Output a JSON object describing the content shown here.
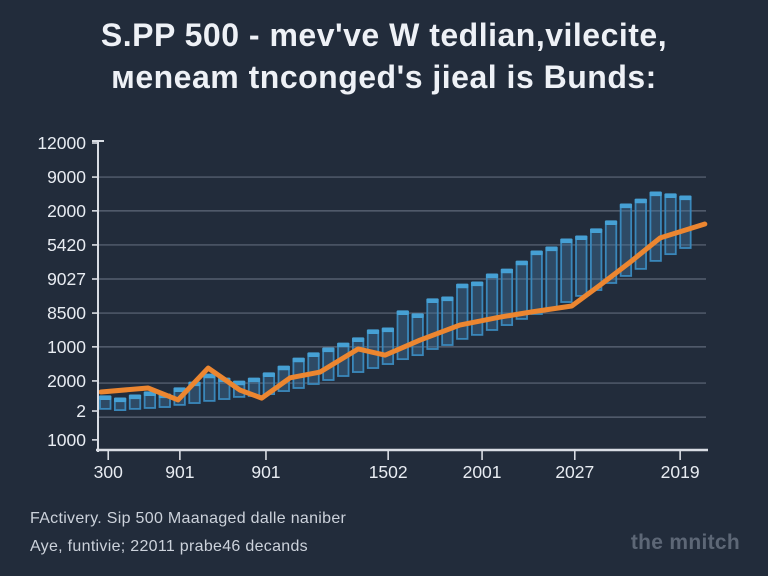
{
  "title": {
    "line1": "S.PP 500 - mev've W tedlian,vilecite,",
    "line2": "мeneam tnconged's jieal is Bunds:"
  },
  "footer": {
    "line1": "FActivery. Sip 500 Maanaged dalle naniber",
    "line2": "Aye, funtivie; 22011 prabe46 decands",
    "watermark": "the mnitch"
  },
  "colors": {
    "background": "#222c3b",
    "bar_fill": "rgba(66,120,165,0.40)",
    "bar_edge": "#3a87ba",
    "bar_cap": "#46a0d4",
    "line": "#ec8630",
    "grid": "rgba(188,198,214,0.40)",
    "axis": "#d9dde4",
    "tick_text": "#e8ecf2"
  },
  "chart_data": {
    "type": "range-bar+line",
    "title": "S.PP 500 - mev've W tedlian,vilecite, мeneam tnconged's jieal is Bunds:",
    "legend": "none",
    "grid": "horizontal",
    "y_axis": {
      "labels": [
        "12000",
        "9000",
        "2000",
        "5420",
        "9027",
        "8500",
        "1000",
        "2000",
        "2",
        "1000"
      ],
      "positions_pct": [
        100,
        88.9,
        77.9,
        66.8,
        55.7,
        44.6,
        33.6,
        22.5,
        12.7,
        3.3
      ]
    },
    "x_axis": {
      "labels": [
        "300",
        "901",
        "901",
        "1502",
        "2001",
        "2027",
        "2019"
      ],
      "positions_pct": [
        1.7,
        13.6,
        27.9,
        48.2,
        63.8,
        79.2,
        96.7
      ]
    },
    "gridlines_pct": [
      88.9,
      77.9,
      66.8,
      55.7,
      44.6,
      33.6,
      21.8,
      10.7
    ],
    "series": [
      {
        "name": "striped-range-bars",
        "bars_top_bottom_pct": [
          [
            17.3,
            13.4
          ],
          [
            16.6,
            13.0
          ],
          [
            17.6,
            13.4
          ],
          [
            18.6,
            13.7
          ],
          [
            17.9,
            14.0
          ],
          [
            19.9,
            14.7
          ],
          [
            21.8,
            15.3
          ],
          [
            24.4,
            16.0
          ],
          [
            23.1,
            16.6
          ],
          [
            22.1,
            17.3
          ],
          [
            23.1,
            17.6
          ],
          [
            24.8,
            18.2
          ],
          [
            27.0,
            19.2
          ],
          [
            29.6,
            20.2
          ],
          [
            31.3,
            21.5
          ],
          [
            32.9,
            22.8
          ],
          [
            34.5,
            24.1
          ],
          [
            36.2,
            25.4
          ],
          [
            38.8,
            26.7
          ],
          [
            39.4,
            28.0
          ],
          [
            45.0,
            29.6
          ],
          [
            44.0,
            30.9
          ],
          [
            48.9,
            32.9
          ],
          [
            49.5,
            34.2
          ],
          [
            53.7,
            36.2
          ],
          [
            54.4,
            37.5
          ],
          [
            57.0,
            39.1
          ],
          [
            58.6,
            40.7
          ],
          [
            61.2,
            42.7
          ],
          [
            64.5,
            44.3
          ],
          [
            65.8,
            46.3
          ],
          [
            68.4,
            48.2
          ],
          [
            69.4,
            50.2
          ],
          [
            71.7,
            52.1
          ],
          [
            74.3,
            54.4
          ],
          [
            79.8,
            56.7
          ],
          [
            81.4,
            59.0
          ],
          [
            83.7,
            61.6
          ],
          [
            83.1,
            63.8
          ],
          [
            82.4,
            65.8
          ]
        ]
      },
      {
        "name": "orange-trend-line",
        "points_xpct_vpct": [
          [
            0.5,
            18.9
          ],
          [
            8.3,
            20.2
          ],
          [
            13.3,
            16.3
          ],
          [
            18.3,
            26.7
          ],
          [
            23.6,
            19.5
          ],
          [
            27.2,
            16.9
          ],
          [
            31.9,
            23.5
          ],
          [
            36.9,
            25.4
          ],
          [
            43.2,
            32.9
          ],
          [
            47.7,
            30.9
          ],
          [
            53.5,
            35.8
          ],
          [
            60.1,
            40.7
          ],
          [
            66.8,
            43.3
          ],
          [
            72.1,
            45.0
          ],
          [
            78.7,
            46.9
          ],
          [
            83.4,
            53.7
          ],
          [
            88.4,
            61.2
          ],
          [
            93.4,
            69.1
          ],
          [
            100.8,
            73.6
          ]
        ]
      }
    ]
  }
}
